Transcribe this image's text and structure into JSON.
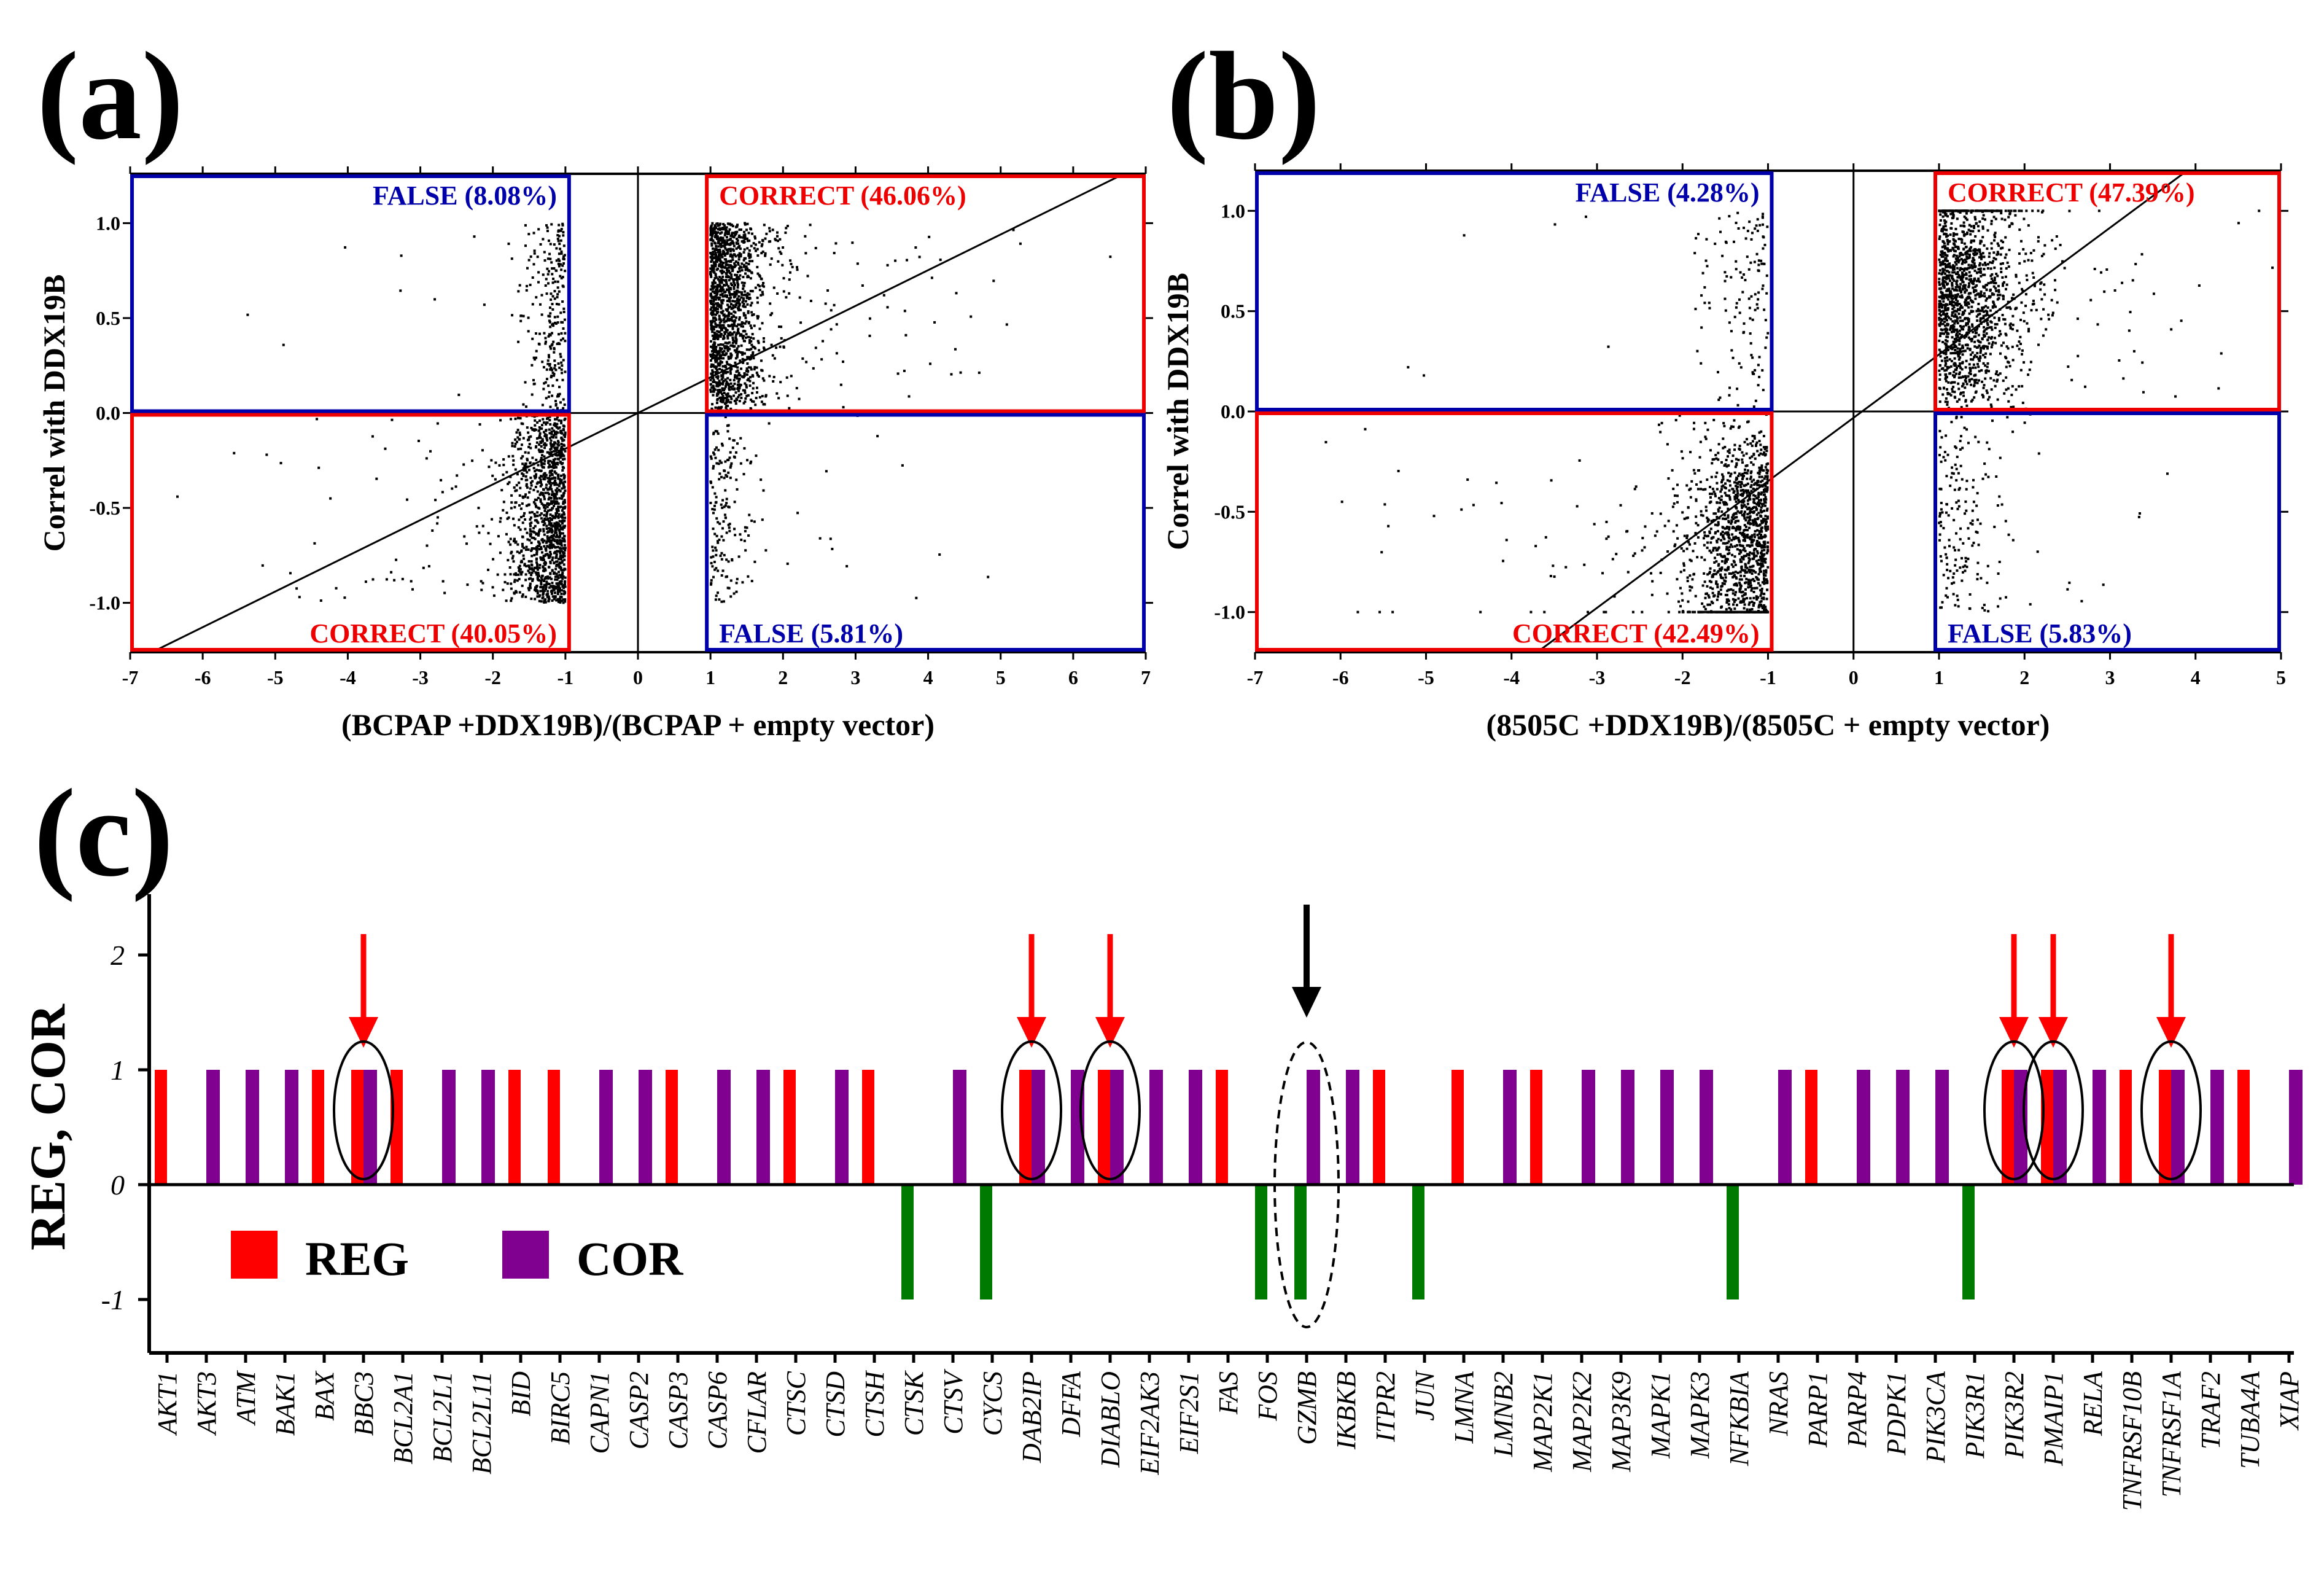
{
  "colors": {
    "reg": "#ff0000",
    "cor": "#800090",
    "reg_down": "#007a00",
    "false_box": "#0000aa",
    "correct_box": "#ee0000",
    "points": "#000000"
  },
  "chart_data": [
    {
      "panel": "(a)",
      "type": "scatter",
      "xlabel": "(BCPAP +DDX19B)/(BCPAP + empty vector)",
      "ylabel": "Correl with DDX19B",
      "xlim": [
        -7,
        7
      ],
      "ylim": [
        -1.26,
        1.26
      ],
      "xticks": [
        "-7",
        "-6",
        "-5",
        "-4",
        "-3",
        "-2",
        "-1",
        "0",
        "1",
        "2",
        "3",
        "4",
        "5",
        "6",
        "7"
      ],
      "yticks": [
        "1.0",
        "0.5",
        "0.0",
        "-0.5",
        "-1.0"
      ],
      "regression_line": {
        "x": [
          -6.7,
          6.7
        ],
        "y": [
          -1.26,
          1.26
        ]
      },
      "quadrants": [
        {
          "name": "upper-left",
          "label": "FALSE (8.08%)",
          "kind": "false",
          "percent": 8.08
        },
        {
          "name": "upper-right",
          "label": "CORRECT (46.06%)",
          "kind": "correct",
          "percent": 46.06
        },
        {
          "name": "lower-left",
          "label": "CORRECT (40.05%)",
          "kind": "correct",
          "percent": 40.05
        },
        {
          "name": "lower-right",
          "label": "FALSE (5.81%)",
          "kind": "false",
          "percent": 5.81
        }
      ]
    },
    {
      "panel": "(b)",
      "type": "scatter",
      "xlabel": "(8505C +DDX19B)/(8505C + empty vector)",
      "ylabel": "Correl with DDX19B",
      "xlim": [
        -7,
        5
      ],
      "ylim": [
        -1.2,
        1.2
      ],
      "xticks": [
        "-7",
        "-6",
        "-5",
        "-4",
        "-3",
        "-2",
        "-1",
        "0",
        "1",
        "2",
        "3",
        "4",
        "5"
      ],
      "yticks": [
        "1.0",
        "0.5",
        "0.0",
        "-0.5",
        "-1.0"
      ],
      "regression_line": {
        "x": [
          -3.7,
          3.9
        ],
        "y": [
          -1.2,
          1.2
        ]
      },
      "quadrants": [
        {
          "name": "upper-left",
          "label": "FALSE (4.28%)",
          "kind": "false",
          "percent": 4.28
        },
        {
          "name": "upper-right",
          "label": "CORRECT (47.39%)",
          "kind": "correct",
          "percent": 47.39
        },
        {
          "name": "lower-left",
          "label": "CORRECT (42.49%)",
          "kind": "correct",
          "percent": 42.49
        },
        {
          "name": "lower-right",
          "label": "FALSE (5.83%)",
          "kind": "false",
          "percent": 5.83
        }
      ]
    },
    {
      "panel": "(c)",
      "type": "bar",
      "ylabel": "REG, COR",
      "ylim": [
        -1.5,
        2.5
      ],
      "yticks": [
        "2",
        "1",
        "0",
        "-1"
      ],
      "legend": [
        {
          "label": "REG",
          "color_key": "reg"
        },
        {
          "label": "COR",
          "color_key": "cor"
        }
      ],
      "legend_placement": "lower-left",
      "categories": [
        "AKT1",
        "AKT3",
        "ATM",
        "BAK1",
        "BAX",
        "BBC3",
        "BCL2A1",
        "BCL2L1",
        "BCL2L11",
        "BID",
        "BIRC5",
        "CAPN1",
        "CASP2",
        "CASP3",
        "CASP6",
        "CFLAR",
        "CTSC",
        "CTSD",
        "CTSH",
        "CTSK",
        "CTSV",
        "CYCS",
        "DAB2IP",
        "DFFA",
        "DIABLO",
        "EIF2AK3",
        "EIF2S1",
        "FAS",
        "FOS",
        "GZMB",
        "IKBKB",
        "ITPR2",
        "JUN",
        "LMNA",
        "LMNB2",
        "MAP2K1",
        "MAP2K2",
        "MAP3K9",
        "MAPK1",
        "MAPK3",
        "NFKBIA",
        "NRAS",
        "PARP1",
        "PARP4",
        "PDPK1",
        "PIK3CA",
        "PIK3R1",
        "PIK3R2",
        "PMAIP1",
        "RELA",
        "TNFRSF10B",
        "TNFRSF1A",
        "TRAF2",
        "TUBA4A",
        "XIAP"
      ],
      "series": [
        {
          "name": "REG",
          "values": [
            1,
            0,
            0,
            0,
            1,
            1,
            1,
            0,
            0,
            1,
            1,
            0,
            0,
            1,
            0,
            0,
            1,
            0,
            1,
            -1,
            0,
            -1,
            1,
            0,
            1,
            0,
            0,
            1,
            -1,
            -1,
            0,
            1,
            -1,
            1,
            0,
            1,
            0,
            0,
            0,
            0,
            -1,
            0,
            1,
            0,
            0,
            0,
            -1,
            1,
            1,
            0,
            1,
            1,
            0,
            1,
            0
          ]
        },
        {
          "name": "COR",
          "values": [
            0,
            1,
            1,
            1,
            0,
            1,
            0,
            1,
            1,
            0,
            0,
            1,
            1,
            0,
            1,
            1,
            0,
            1,
            0,
            0,
            1,
            0,
            1,
            1,
            1,
            1,
            1,
            0,
            0,
            1,
            1,
            0,
            0,
            0,
            1,
            0,
            1,
            1,
            1,
            1,
            0,
            1,
            0,
            1,
            1,
            1,
            0,
            1,
            1,
            1,
            0,
            1,
            1,
            0,
            1
          ]
        }
      ],
      "highlighted_red_arrows": [
        "BBC3",
        "DAB2IP",
        "DIABLO",
        "PIK3R2",
        "PMAIP1",
        "TNFRSF1A"
      ],
      "highlighted_black_arrow": [
        "GZMB"
      ]
    }
  ]
}
